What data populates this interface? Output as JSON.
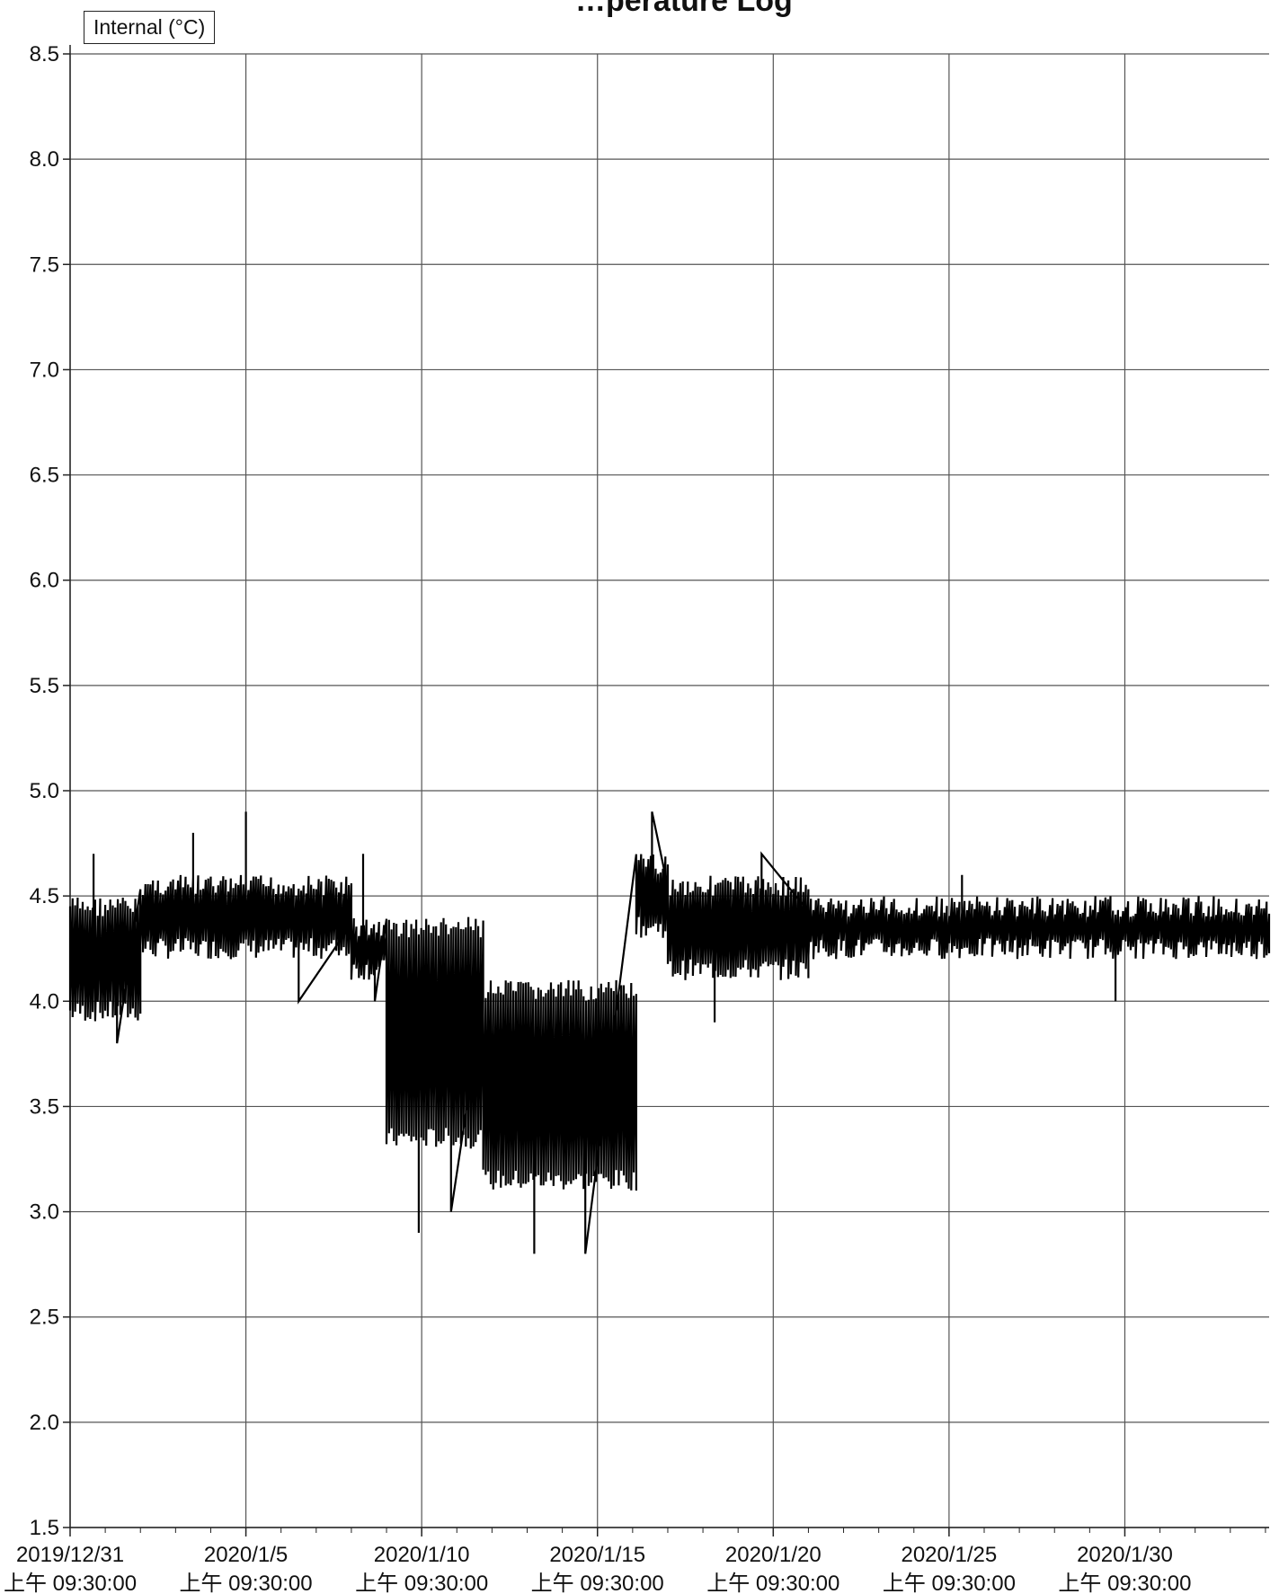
{
  "chart_data": {
    "type": "line",
    "title": "…perature Log",
    "legend": [
      "Internal (°C)"
    ],
    "legend_placement": "top-left",
    "grid": true,
    "ylim": [
      1.5,
      8.5
    ],
    "y_ticks": [
      "1.5",
      "2.0",
      "2.5",
      "3.0",
      "3.5",
      "4.0",
      "4.5",
      "5.0",
      "5.5",
      "6.0",
      "6.5",
      "7.0",
      "7.5",
      "8.0",
      "8.5"
    ],
    "xlim": [
      "2019-12-31 09:30",
      "2020-02-03 12:00"
    ],
    "x_ticks": [
      {
        "date": "2019/12/31",
        "time": "上午 09:30:00"
      },
      {
        "date": "2020/1/5",
        "time": "上午 09:30:00"
      },
      {
        "date": "2020/1/10",
        "time": "上午 09:30:00"
      },
      {
        "date": "2020/1/15",
        "time": "上午 09:30:00"
      },
      {
        "date": "2020/1/20",
        "time": "上午 09:30:00"
      },
      {
        "date": "2020/1/25",
        "time": "上午 09:30:00"
      },
      {
        "date": "2020/1/30",
        "time": "上午 09:30:00"
      }
    ],
    "series": [
      {
        "name": "Internal (°C)",
        "color": "#000000",
        "segments": [
          {
            "from": "2019-12-31 09:30",
            "to": "2020-01-02 09:30",
            "low": 3.9,
            "high": 4.5,
            "spikes": [
              4.7,
              3.8
            ]
          },
          {
            "from": "2020-01-02 09:30",
            "to": "2020-01-08 09:30",
            "low": 4.2,
            "high": 4.6,
            "spikes": [
              4.8,
              4.9,
              4.0
            ]
          },
          {
            "from": "2020-01-08 09:30",
            "to": "2020-01-09 09:30",
            "low": 4.1,
            "high": 4.4,
            "spikes": [
              4.7,
              4.0
            ]
          },
          {
            "from": "2020-01-09 09:30",
            "to": "2020-01-12 03:30",
            "low": 3.3,
            "high": 4.4,
            "spikes": [
              2.9,
              3.0
            ]
          },
          {
            "from": "2020-01-12 03:30",
            "to": "2020-01-16 12:00",
            "low": 3.1,
            "high": 4.1,
            "spikes": [
              2.8,
              2.8
            ]
          },
          {
            "from": "2020-01-16 12:00",
            "to": "2020-01-17 09:30",
            "low": 4.3,
            "high": 4.7,
            "spikes": [
              4.9
            ]
          },
          {
            "from": "2020-01-17 09:30",
            "to": "2020-01-21 09:30",
            "low": 4.1,
            "high": 4.6,
            "spikes": [
              3.9,
              4.7
            ]
          },
          {
            "from": "2020-01-21 09:30",
            "to": "2020-02-03 12:00",
            "low": 4.2,
            "high": 4.5,
            "spikes": [
              4.6,
              4.0
            ]
          }
        ]
      }
    ]
  }
}
